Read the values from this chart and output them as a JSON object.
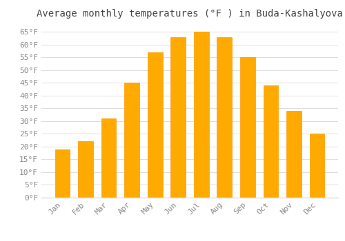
{
  "title": "Average monthly temperatures (°F ) in Buda-Kashalyova",
  "months": [
    "Jan",
    "Feb",
    "Mar",
    "Apr",
    "May",
    "Jun",
    "Jul",
    "Aug",
    "Sep",
    "Oct",
    "Nov",
    "Dec"
  ],
  "values": [
    19,
    22,
    31,
    45,
    57,
    63,
    65,
    63,
    55,
    44,
    34,
    25
  ],
  "bar_color": "#FFAA00",
  "bar_edge_color": "#FF9900",
  "background_color": "#FFFFFF",
  "grid_color": "#DDDDDD",
  "text_color": "#888888",
  "title_color": "#444444",
  "ylim": [
    0,
    68
  ],
  "yticks": [
    0,
    5,
    10,
    15,
    20,
    25,
    30,
    35,
    40,
    45,
    50,
    55,
    60,
    65
  ],
  "ylabel_suffix": "°F",
  "title_fontsize": 10,
  "tick_fontsize": 8
}
